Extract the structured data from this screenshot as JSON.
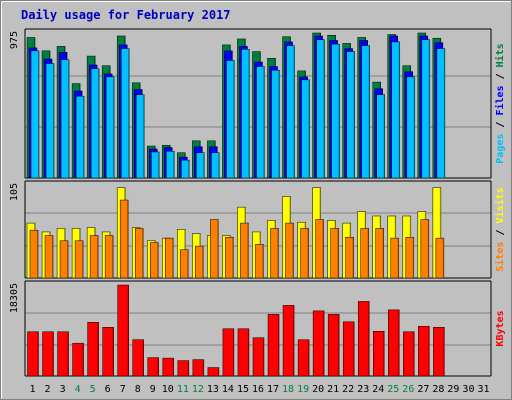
{
  "chart_data": {
    "type": "bar",
    "title": "Daily usage for February 2017",
    "days": [
      "1",
      "2",
      "3",
      "4",
      "5",
      "6",
      "7",
      "8",
      "9",
      "10",
      "11",
      "12",
      "13",
      "14",
      "15",
      "16",
      "17",
      "18",
      "19",
      "20",
      "21",
      "22",
      "23",
      "24",
      "25",
      "26",
      "27",
      "28",
      "29",
      "30",
      "31"
    ],
    "weekend_days": [
      "4",
      "5",
      "11",
      "12",
      "18",
      "19",
      "25",
      "26"
    ],
    "panels": [
      {
        "id": "hits",
        "ymax": 975,
        "ytick_label": "975",
        "right_label_parts": [
          {
            "text": "Pages",
            "color": "#00c0ff"
          },
          {
            "text": " / ",
            "color": "#000000"
          },
          {
            "text": "Files",
            "color": "#0000ff"
          },
          {
            "text": " / ",
            "color": "#000000"
          },
          {
            "text": "Hits",
            "color": "#008040"
          }
        ],
        "series": [
          {
            "name": "Hits",
            "color": "#008040",
            "values": [
              945,
              855,
              885,
              635,
              820,
              755,
              955,
              640,
              215,
              220,
              170,
              250,
              250,
              895,
              935,
              850,
              805,
              950,
              720,
              975,
              960,
              905,
              945,
              645,
              965,
              755,
              975,
              940,
              0,
              0,
              0
            ]
          },
          {
            "name": "Files",
            "color": "#0000ff",
            "values": [
              875,
              800,
              845,
              585,
              760,
              700,
              895,
              595,
              195,
              205,
              140,
              210,
              210,
              855,
              885,
              780,
              750,
              915,
              680,
              955,
              925,
              870,
              925,
              600,
              955,
              715,
              955,
              910,
              0,
              0,
              0
            ]
          },
          {
            "name": "Pages",
            "color": "#00c0ff",
            "values": [
              855,
              770,
              795,
              550,
              735,
              680,
              870,
              560,
              175,
              180,
              120,
              170,
              170,
              790,
              865,
              750,
              725,
              890,
              660,
              930,
              900,
              850,
              890,
              560,
              915,
              680,
              930,
              870,
              0,
              0,
              0
            ]
          }
        ]
      },
      {
        "id": "visits",
        "ymax": 105,
        "ytick_label": "105",
        "right_label_parts": [
          {
            "text": "Sites",
            "color": "#ff8000"
          },
          {
            "text": " / ",
            "color": "#000000"
          },
          {
            "text": "Visits",
            "color": "#ffff00"
          }
        ],
        "series": [
          {
            "name": "Visits",
            "color": "#ffff00",
            "values": [
              62,
              52,
              56,
              56,
              57,
              52,
              102,
              57,
              42,
              45,
              55,
              50,
              48,
              48,
              80,
              52,
              65,
              92,
              63,
              102,
              65,
              62,
              75,
              70,
              70,
              70,
              75,
              102,
              0,
              0,
              0
            ]
          },
          {
            "name": "Sites",
            "color": "#ff8000",
            "values": [
              54,
              48,
              42,
              42,
              48,
              48,
              88,
              56,
              40,
              45,
              32,
              36,
              66,
              46,
              62,
              38,
              56,
              62,
              56,
              66,
              56,
              46,
              56,
              56,
              45,
              46,
              66,
              45,
              0,
              0,
              0
            ]
          }
        ]
      },
      {
        "id": "kbytes",
        "ymax": 18305,
        "ytick_label": "18305",
        "right_label_parts": [
          {
            "text": "KBytes",
            "color": "#ff0000"
          }
        ],
        "series": [
          {
            "name": "KBytes",
            "color": "#ff0000",
            "values": [
              8900,
              8900,
              8900,
              6600,
              10800,
              9800,
              18300,
              7300,
              3700,
              3600,
              3100,
              3300,
              1700,
              9500,
              9500,
              7700,
              12400,
              14200,
              7300,
              13100,
              12400,
              10900,
              15000,
              9000,
              13300,
              8900,
              10000,
              9800,
              0,
              0,
              0
            ]
          }
        ]
      }
    ]
  }
}
